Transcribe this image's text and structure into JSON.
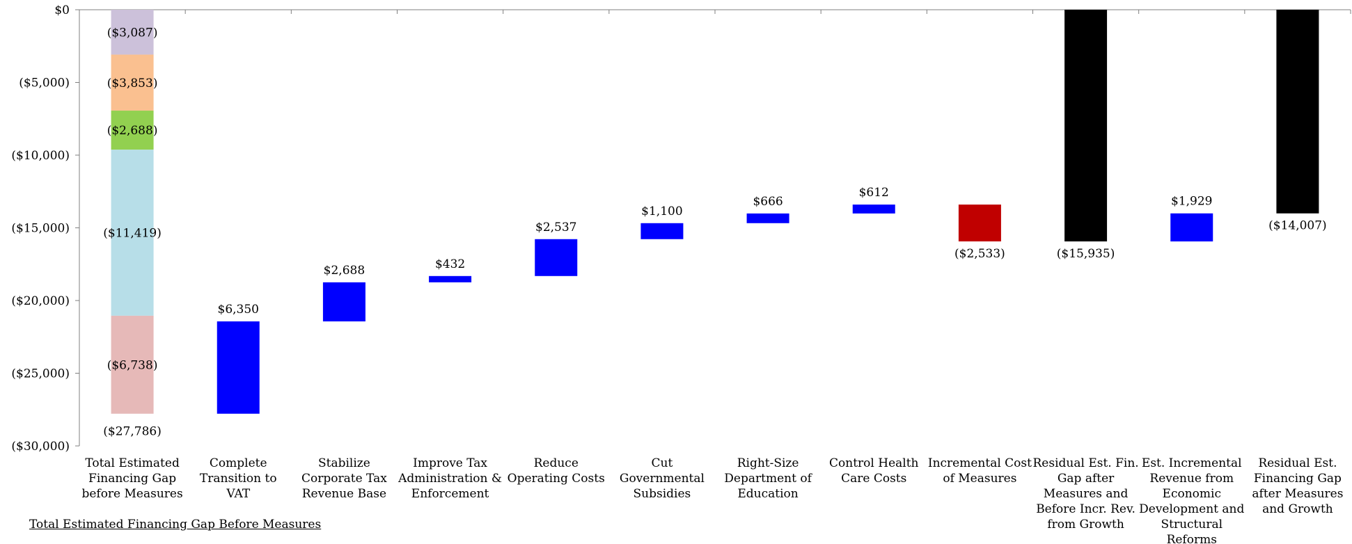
{
  "chart_data": {
    "type": "bar",
    "subtype": "waterfall",
    "title": "",
    "xlabel": "",
    "ylabel": "",
    "ylim": [
      -30000,
      0
    ],
    "yticks": [
      0,
      -5000,
      -10000,
      -15000,
      -20000,
      -25000,
      -30000
    ],
    "ytick_labels": [
      "$0",
      "($5,000)",
      "($10,000)",
      "($15,000)",
      "($20,000)",
      "($25,000)",
      "($30,000)"
    ],
    "grid": false,
    "legend": "none",
    "colors": {
      "increase": "#0000ff",
      "decrease": "#c00000",
      "total": "#000000",
      "axis": "#7f7f7f"
    },
    "first_bar_segments": [
      {
        "low": -3087,
        "high": 0,
        "value": -3087,
        "label": "($3,087)",
        "color": "#ccc1da"
      },
      {
        "low": -6940,
        "high": -3087,
        "value": -3853,
        "label": "($3,853)",
        "color": "#fac090"
      },
      {
        "low": -9628,
        "high": -6940,
        "value": -2688,
        "label": "($2,688)",
        "color": "#92d050"
      },
      {
        "low": -21047,
        "high": -9628,
        "value": -11419,
        "label": "($11,419)",
        "color": "#b7dee8"
      },
      {
        "low": -27786,
        "high": -21047,
        "value": -6738,
        "label": "($6,738)",
        "color": "#e6b9b8"
      }
    ],
    "first_bar_total_label": "($27,786)",
    "categories": [
      [
        "Total Estimated",
        "Financing Gap",
        "before Measures"
      ],
      [
        "Complete",
        "Transition to",
        "VAT"
      ],
      [
        "Stabilize",
        "Corporate Tax",
        "Revenue Base"
      ],
      [
        "Improve Tax",
        "Administration &",
        "Enforcement"
      ],
      [
        "Reduce",
        "Operating Costs"
      ],
      [
        "Cut",
        "Governmental",
        "Subsidies"
      ],
      [
        "Right-Size",
        "Department of",
        "Education"
      ],
      [
        "Control Health",
        "Care Costs"
      ],
      [
        "Incremental Cost",
        "of Measures"
      ],
      [
        "Residual Est. Fin.",
        "Gap after",
        "Measures and",
        "Before Incr. Rev.",
        "from Growth"
      ],
      [
        "Est. Incremental",
        "Revenue from",
        "Economic",
        "Development and",
        "Structural",
        "Reforms"
      ],
      [
        "Residual Est.",
        "Financing Gap",
        "after Measures",
        "and Growth"
      ]
    ],
    "bars": [
      {
        "kind": "stack"
      },
      {
        "kind": "increase",
        "low": -27786,
        "high": -21436,
        "value": 6350,
        "label": "$6,350"
      },
      {
        "kind": "increase",
        "low": -21436,
        "high": -18748,
        "value": 2688,
        "label": "$2,688"
      },
      {
        "kind": "increase",
        "low": -18748,
        "high": -18316,
        "value": 432,
        "label": "$432"
      },
      {
        "kind": "increase",
        "low": -18316,
        "high": -15779,
        "value": 2537,
        "label": "$2,537"
      },
      {
        "kind": "increase",
        "low": -15779,
        "high": -14679,
        "value": 1100,
        "label": "$1,100"
      },
      {
        "kind": "increase",
        "low": -14679,
        "high": -14013,
        "value": 666,
        "label": "$666"
      },
      {
        "kind": "increase",
        "low": -14013,
        "high": -13401,
        "value": 612,
        "label": "$612"
      },
      {
        "kind": "decrease",
        "low": -15934,
        "high": -13401,
        "value": -2533,
        "label": "($2,533)"
      },
      {
        "kind": "total",
        "low": -15935,
        "high": 0,
        "value": -15935,
        "label": "($15,935)"
      },
      {
        "kind": "increase",
        "low": -15936,
        "high": -14007,
        "value": 1929,
        "label": "$1,929"
      },
      {
        "kind": "total",
        "low": -14007,
        "high": 0,
        "value": -14007,
        "label": "($14,007)"
      }
    ]
  },
  "footnote": "Total Estimated Financing Gap Before Measures"
}
